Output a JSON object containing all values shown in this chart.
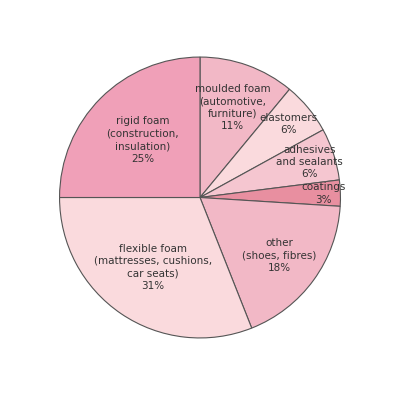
{
  "slices": [
    {
      "label": "moulded foam\n(automotive,\nfurniture)\n11%",
      "value": 11,
      "color": "#f2b8c6"
    },
    {
      "label": "elastomers\n6%",
      "value": 6,
      "color": "#fadadd"
    },
    {
      "label": "adhesives\nand sealants\n6%",
      "value": 6,
      "color": "#f5c6d0"
    },
    {
      "label": "coatings\n3%",
      "value": 3,
      "color": "#e88fa0"
    },
    {
      "label": "other\n(shoes, fibres)\n18%",
      "value": 18,
      "color": "#f2b8c6"
    },
    {
      "label": "flexible foam\n(mattresses, cushions,\ncar seats)\n31%",
      "value": 31,
      "color": "#fadadd"
    },
    {
      "label": "rigid foam\n(construction,\ninsulation)\n25%",
      "value": 25,
      "color": "#f0a0b8"
    }
  ],
  "start_angle": 90,
  "edge_color": "#555555",
  "edge_width": 0.8,
  "figure_bg": "#ffffff",
  "text_color": "#333333",
  "fontsize": 7.5,
  "label_positions": [
    {
      "r": 0.68,
      "ha": "center"
    },
    {
      "r": 0.82,
      "ha": "center"
    },
    {
      "r": 0.82,
      "ha": "center"
    },
    {
      "r": 0.88,
      "ha": "center"
    },
    {
      "r": 0.7,
      "ha": "center"
    },
    {
      "r": 0.6,
      "ha": "center"
    },
    {
      "r": 0.58,
      "ha": "center"
    }
  ]
}
